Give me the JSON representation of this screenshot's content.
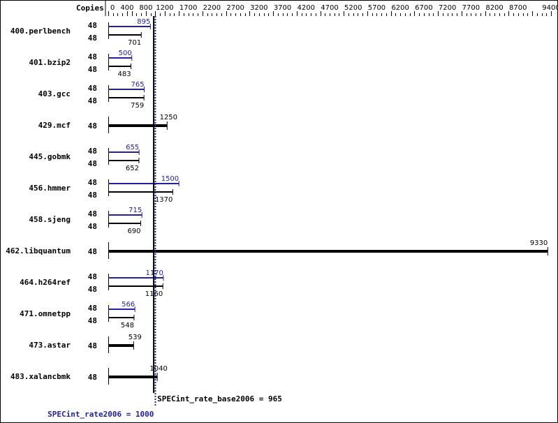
{
  "chart_data": {
    "type": "bar",
    "orientation": "horizontal",
    "axis_label": "Copies",
    "xlim": [
      0,
      9400
    ],
    "ticks": [
      0,
      400,
      800,
      1200,
      1700,
      2200,
      2700,
      3200,
      3700,
      4200,
      4700,
      5200,
      5700,
      6200,
      6700,
      7200,
      7700,
      8200,
      8700,
      9400
    ],
    "colors": {
      "peak": "#2020a0",
      "base": "#000000"
    },
    "benchmarks": [
      {
        "name": "400.perlbench",
        "peak_copies": "48",
        "base_copies": "48",
        "peak": 895,
        "base": 701
      },
      {
        "name": "401.bzip2",
        "peak_copies": "48",
        "base_copies": "48",
        "peak": 500,
        "base": 483
      },
      {
        "name": "403.gcc",
        "peak_copies": "48",
        "base_copies": "48",
        "peak": 765,
        "base": 759
      },
      {
        "name": "429.mcf",
        "base_copies": "48",
        "base": 1250
      },
      {
        "name": "445.gobmk",
        "peak_copies": "48",
        "base_copies": "48",
        "peak": 655,
        "base": 652
      },
      {
        "name": "456.hmmer",
        "peak_copies": "48",
        "base_copies": "48",
        "peak": 1500,
        "base": 1370
      },
      {
        "name": "458.sjeng",
        "peak_copies": "48",
        "base_copies": "48",
        "peak": 715,
        "base": 690
      },
      {
        "name": "462.libquantum",
        "base_copies": "48",
        "base": 9330
      },
      {
        "name": "464.h264ref",
        "peak_copies": "48",
        "base_copies": "48",
        "peak": 1170,
        "base": 1160
      },
      {
        "name": "471.omnetpp",
        "peak_copies": "48",
        "base_copies": "48",
        "peak": 566,
        "base": 548
      },
      {
        "name": "473.astar",
        "base_copies": "48",
        "base": 539
      },
      {
        "name": "483.xalancbmk",
        "base_copies": "48",
        "base": 1040
      }
    ],
    "base_metric": {
      "label": "SPECint_rate_base2006 = 965",
      "value": 965
    },
    "peak_metric": {
      "label": "SPECint_rate2006 = 1000",
      "value": 1000
    }
  }
}
